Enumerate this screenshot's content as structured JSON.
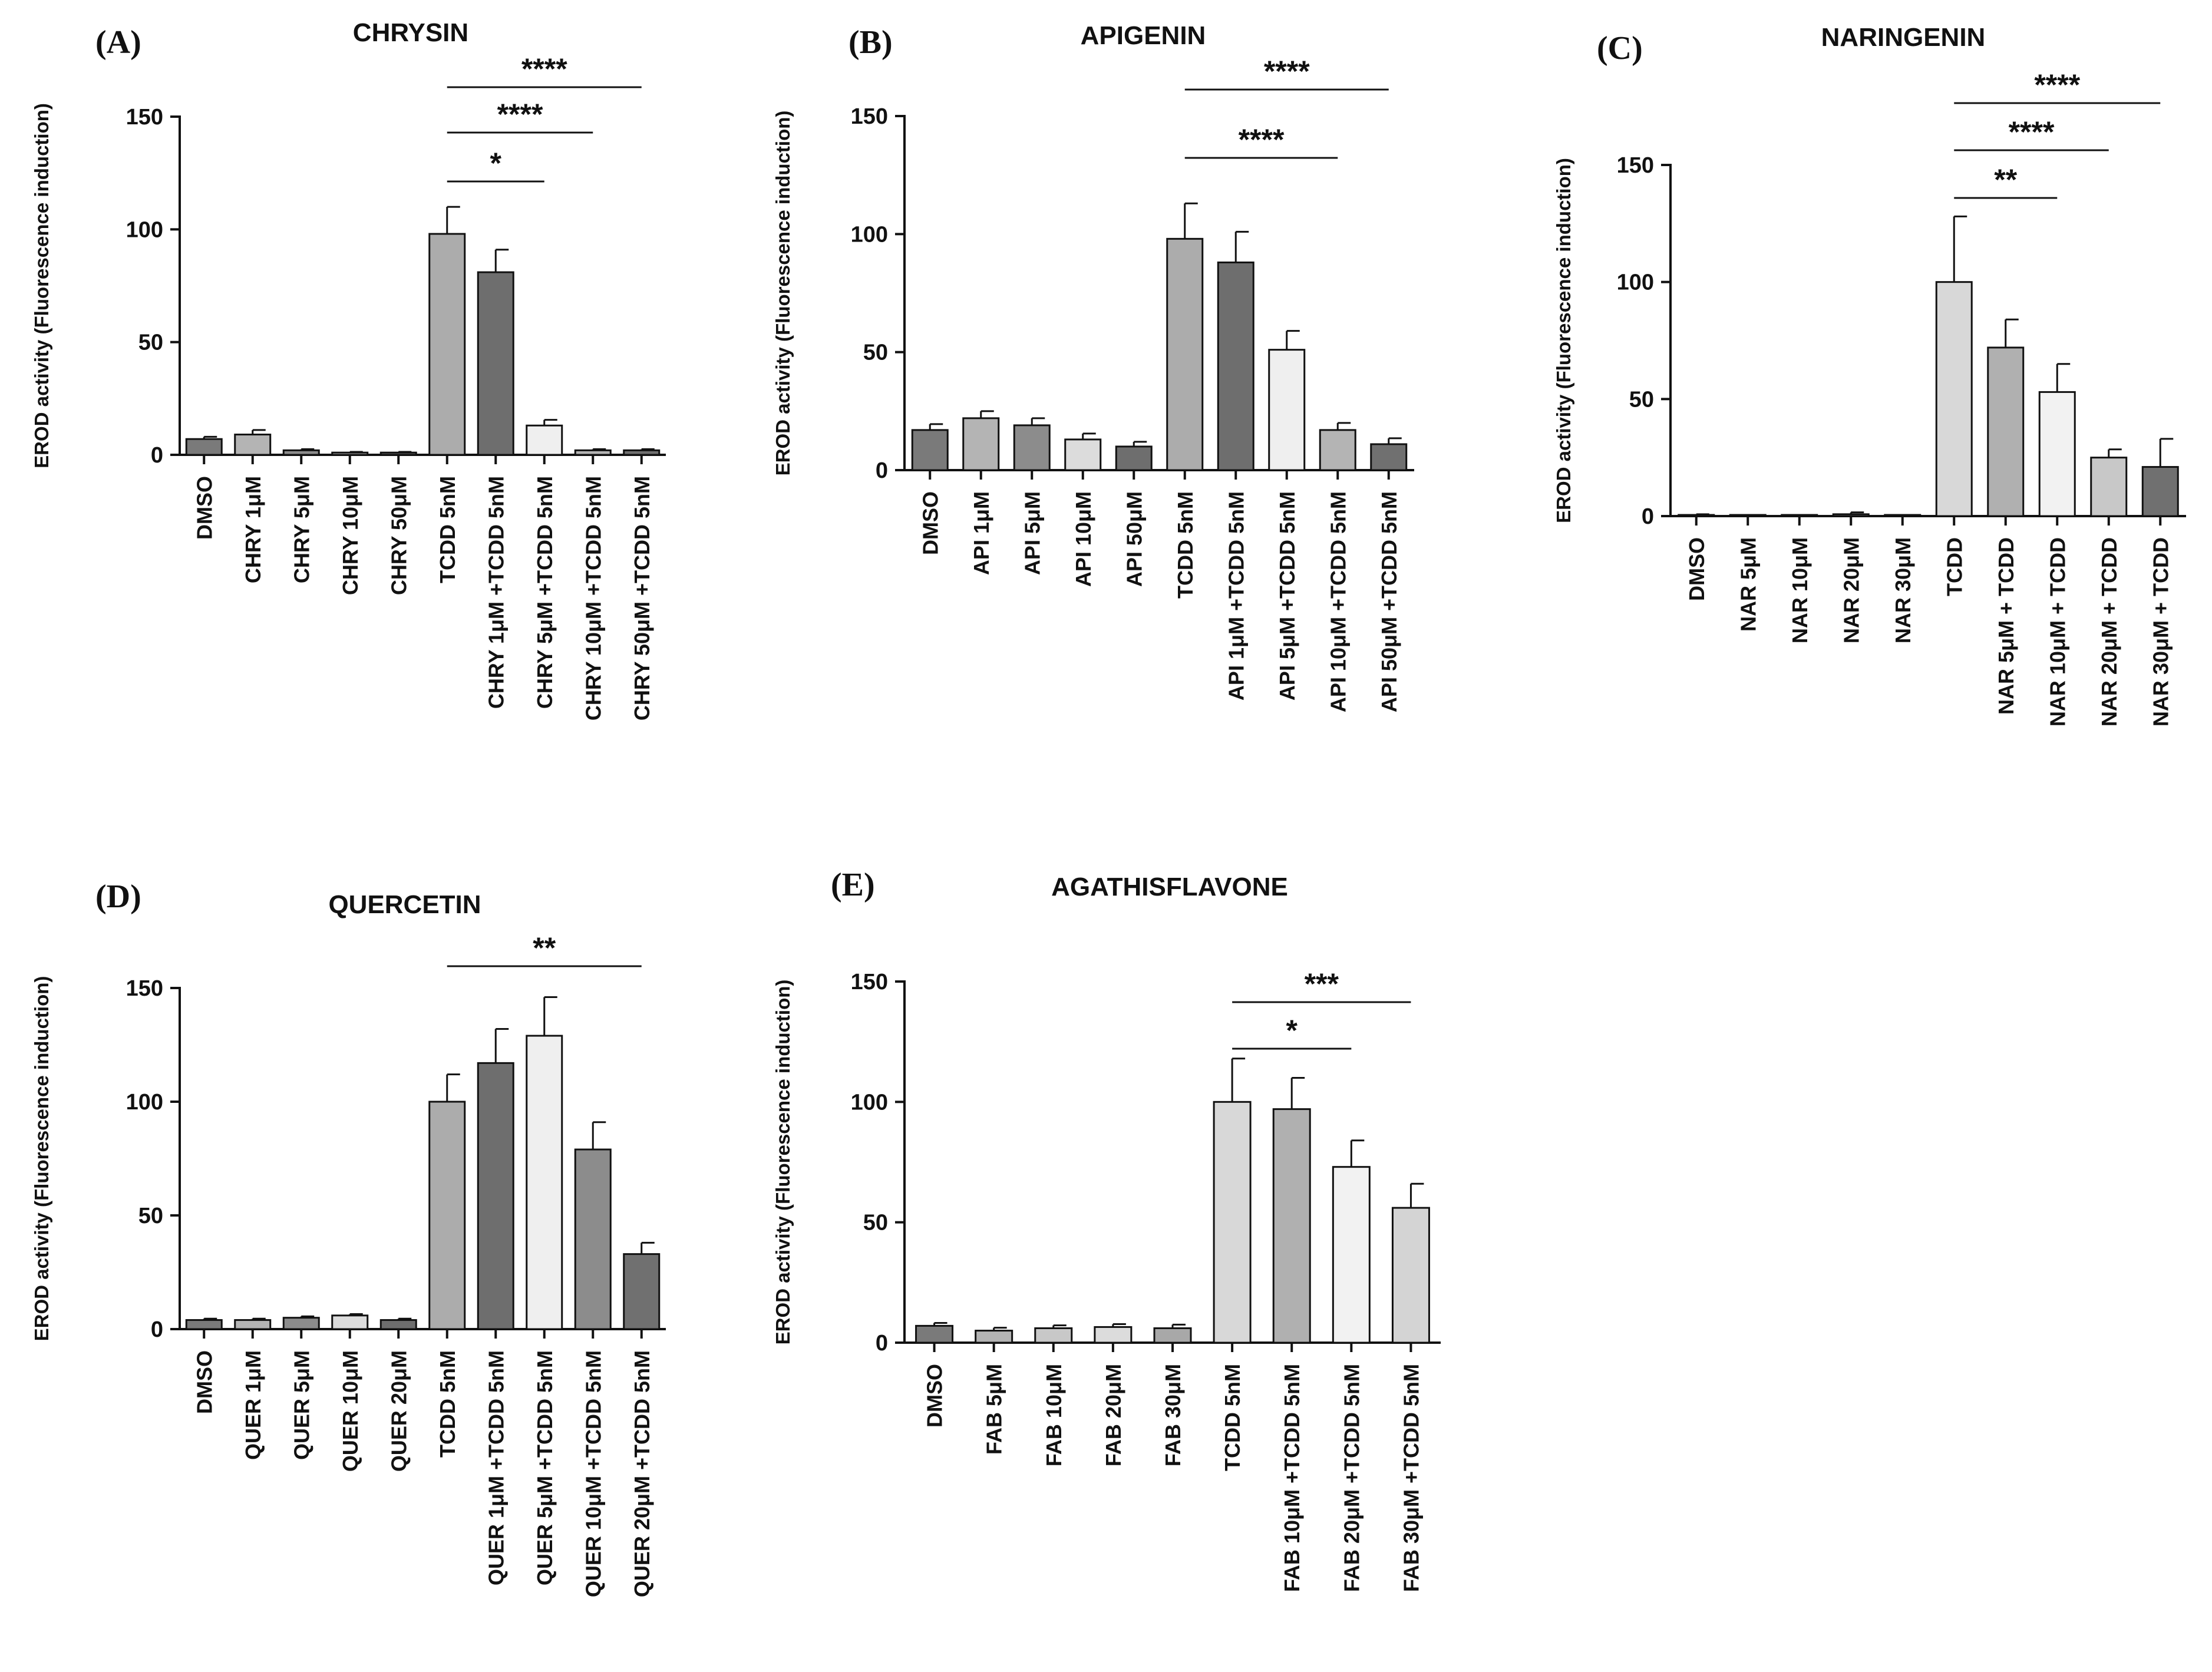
{
  "chart_data": [
    {
      "type": "bar",
      "panel": "(A)",
      "title": "CHRYSIN",
      "ylabel": "EROD activity (Fluorescence induction)",
      "ylim": [
        0,
        150
      ],
      "yticks": [
        0,
        50,
        100,
        150
      ],
      "categories": [
        "DMSO",
        "CHRY 1μM",
        "CHRY 5μM",
        "CHRY 10μM",
        "CHRY 50μM",
        "TCDD 5nM",
        "CHRY 1μM +TCDD 5nM",
        "CHRY 5μM +TCDD 5nM",
        "CHRY 10μM +TCDD 5nM",
        "CHRY 50μM +TCDD 5nM"
      ],
      "values": [
        7,
        9,
        2,
        1,
        1,
        98,
        81,
        13,
        2,
        2
      ],
      "errors": [
        1,
        2,
        0.5,
        0.3,
        0.3,
        12,
        10,
        2.5,
        0.5,
        0.5
      ],
      "colors": [
        "#7a7a7a",
        "#b4b4b4",
        "#8c8c8c",
        "#c8c8c8",
        "#6e6e6e",
        "#acacac",
        "#6e6e6e",
        "#efefef",
        "#b4b4b4",
        "#707070"
      ],
      "significance": [
        {
          "from": 5,
          "to": 7,
          "label": "*"
        },
        {
          "from": 5,
          "to": 8,
          "label": "****"
        },
        {
          "from": 5,
          "to": 9,
          "label": "****"
        }
      ]
    },
    {
      "type": "bar",
      "panel": "(B)",
      "title": "APIGENIN",
      "ylabel": "EROD activity (Fluorescence induction)",
      "ylim": [
        0,
        150
      ],
      "yticks": [
        0,
        50,
        100,
        150
      ],
      "categories": [
        "DMSO",
        "API 1μM",
        "API 5μM",
        "API 10μM",
        "API 50μM",
        "TCDD 5nM",
        "API 1μM +TCDD 5nM",
        "API 5μM +TCDD 5nM",
        "API 10μM +TCDD 5nM",
        "API 50μM +TCDD 5nM"
      ],
      "values": [
        17,
        22,
        19,
        13,
        10,
        98,
        88,
        51,
        17,
        11
      ],
      "errors": [
        2.5,
        3,
        3,
        2.5,
        2,
        15,
        13,
        8,
        3,
        2.5
      ],
      "colors": [
        "#7a7a7a",
        "#b4b4b4",
        "#8c8c8c",
        "#dcdcdc",
        "#6e6e6e",
        "#acacac",
        "#6e6e6e",
        "#efefef",
        "#b4b4b4",
        "#707070"
      ],
      "significance": [
        {
          "from": 5,
          "to": 8,
          "label": "****"
        },
        {
          "from": 5,
          "to": 9,
          "label": "****"
        }
      ]
    },
    {
      "type": "bar",
      "panel": "(C)",
      "title": "NARINGENIN",
      "ylabel": "EROD activity (Fluorescence induction)",
      "ylim": [
        0,
        150
      ],
      "yticks": [
        0,
        50,
        100,
        150
      ],
      "categories": [
        "DMSO",
        "NAR 5μM",
        "NAR 10μM",
        "NAR 20μM",
        "NAR 30μM",
        "TCDD",
        "NAR 5μM + TCDD",
        "NAR 10μM + TCDD",
        "NAR 20μM + TCDD",
        "NAR 30μM + TCDD"
      ],
      "values": [
        0.5,
        0.3,
        0.3,
        0.8,
        0.3,
        100,
        72,
        53,
        25,
        21
      ],
      "errors": [
        0.3,
        0.2,
        0.2,
        0.8,
        0.2,
        28,
        12,
        12,
        3.5,
        12
      ],
      "colors": [
        "#7a7a7a",
        "#b4b4b4",
        "#8c8c8c",
        "#dcdcdc",
        "#6e6e6e",
        "#d8d8d8",
        "#b0b0b0",
        "#f2f2f2",
        "#c8c8c8",
        "#707070"
      ],
      "significance": [
        {
          "from": 5,
          "to": 7,
          "label": "**"
        },
        {
          "from": 5,
          "to": 8,
          "label": "****"
        },
        {
          "from": 5,
          "to": 9,
          "label": "****"
        }
      ]
    },
    {
      "type": "bar",
      "panel": "(D)",
      "title": "QUERCETIN",
      "ylabel": "EROD activity (Fluorescence induction)",
      "ylim": [
        0,
        150
      ],
      "yticks": [
        0,
        50,
        100,
        150
      ],
      "categories": [
        "DMSO",
        "QUER 1μM",
        "QUER 5μM",
        "QUER 10μM",
        "QUER 20μM",
        "TCDD 5nM",
        "QUER 1μM +TCDD 5nM",
        "QUER 5μM +TCDD 5nM",
        "QUER 10μM +TCDD 5nM",
        "QUER 20μM +TCDD 5nM"
      ],
      "values": [
        4,
        4,
        5,
        6,
        4,
        100,
        117,
        129,
        79,
        33
      ],
      "errors": [
        0.6,
        0.6,
        0.6,
        0.6,
        0.6,
        12,
        15,
        17,
        12,
        5
      ],
      "colors": [
        "#7a7a7a",
        "#b4b4b4",
        "#8c8c8c",
        "#dcdcdc",
        "#6e6e6e",
        "#acacac",
        "#6e6e6e",
        "#efefef",
        "#8c8c8c",
        "#707070"
      ],
      "significance": [
        {
          "from": 5,
          "to": 9,
          "label": "**"
        }
      ]
    },
    {
      "type": "bar",
      "panel": "(E)",
      "title": "AGATHISFLAVONE",
      "ylabel": "EROD activity (Fluorescence induction)",
      "ylim": [
        0,
        150
      ],
      "yticks": [
        0,
        50,
        100,
        150
      ],
      "categories": [
        "DMSO",
        "FAB 5μM",
        "FAB 10μM",
        "FAB 20μM",
        "FAB 30μM",
        "TCDD 5nM",
        "FAB 10μM +TCDD 5nM",
        "FAB 20μM +TCDD 5nM",
        "FAB 30μM +TCDD 5nM"
      ],
      "values": [
        7,
        5,
        6,
        6.5,
        6,
        100,
        97,
        73,
        56
      ],
      "errors": [
        1.2,
        1.2,
        1.2,
        1.2,
        1.5,
        18,
        13,
        11,
        10
      ],
      "colors": [
        "#7a7a7a",
        "#b4b4b4",
        "#c8c8c8",
        "#dcdcdc",
        "#a8a8a8",
        "#d8d8d8",
        "#b0b0b0",
        "#f2f2f2",
        "#d4d4d4"
      ],
      "significance": [
        {
          "from": 5,
          "to": 7,
          "label": "*"
        },
        {
          "from": 5,
          "to": 8,
          "label": "***"
        }
      ]
    }
  ]
}
